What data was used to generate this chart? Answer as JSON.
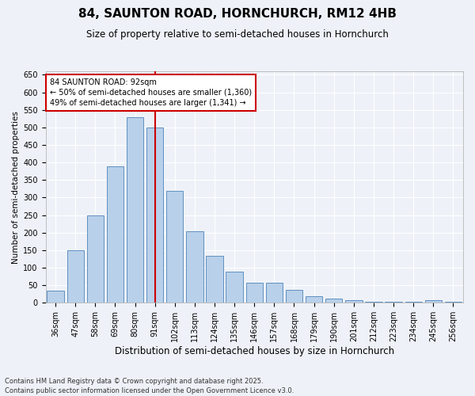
{
  "title": "84, SAUNTON ROAD, HORNCHURCH, RM12 4HB",
  "subtitle": "Size of property relative to semi-detached houses in Hornchurch",
  "xlabel": "Distribution of semi-detached houses by size in Hornchurch",
  "ylabel": "Number of semi-detached properties",
  "categories": [
    "36sqm",
    "47sqm",
    "58sqm",
    "69sqm",
    "80sqm",
    "91sqm",
    "102sqm",
    "113sqm",
    "124sqm",
    "135sqm",
    "146sqm",
    "157sqm",
    "168sqm",
    "179sqm",
    "190sqm",
    "201sqm",
    "212sqm",
    "223sqm",
    "234sqm",
    "245sqm",
    "256sqm"
  ],
  "values": [
    35,
    150,
    250,
    390,
    530,
    500,
    320,
    205,
    135,
    88,
    57,
    57,
    38,
    18,
    12,
    8,
    3,
    3,
    2,
    7,
    3
  ],
  "bar_color": "#b8d0ea",
  "bar_edge_color": "#6090c0",
  "vline_x_idx": 5,
  "vline_color": "#cc0000",
  "annotation_text": "84 SAUNTON ROAD: 92sqm\n← 50% of semi-detached houses are smaller (1,360)\n49% of semi-detached houses are larger (1,341) →",
  "annotation_box_color": "#ffffff",
  "annotation_box_edge_color": "#cc0000",
  "ylim": [
    0,
    660
  ],
  "yticks": [
    0,
    50,
    100,
    150,
    200,
    250,
    300,
    350,
    400,
    450,
    500,
    550,
    600,
    650
  ],
  "footnote": "Contains HM Land Registry data © Crown copyright and database right 2025.\nContains public sector information licensed under the Open Government Licence v3.0.",
  "background_color": "#eef2f8",
  "grid_color": "#ffffff",
  "title_fontsize": 11,
  "subtitle_fontsize": 8.5,
  "ylabel_fontsize": 7.5,
  "xlabel_fontsize": 8.5,
  "tick_fontsize": 7,
  "annot_fontsize": 7,
  "footnote_fontsize": 6
}
